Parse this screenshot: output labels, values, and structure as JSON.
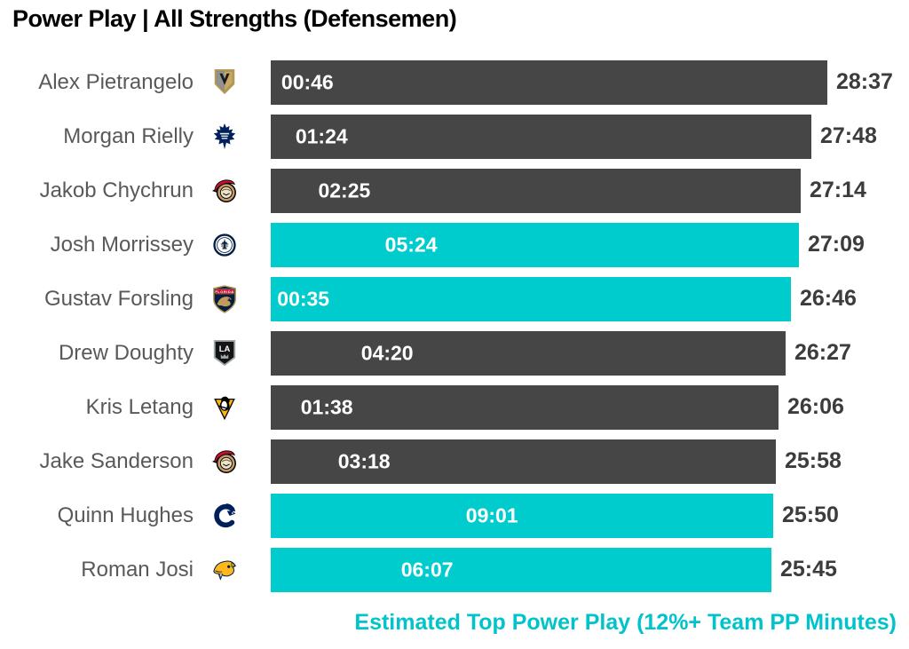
{
  "title": "Power Play | All Strengths (Defensemen)",
  "footnote": "Estimated Top Power Play (12%+ Team PP Minutes)",
  "colors": {
    "title_text": "#000000",
    "bar_default": "#464646",
    "bar_highlight": "#00CCCE",
    "name_text": "#595959",
    "value_text": "#3C3C3C",
    "pp_label_text": "#FFFFFF",
    "footnote_text": "#00C3CB"
  },
  "chart_data": {
    "type": "bar",
    "orientation": "horizontal",
    "title": "Power Play | All Strengths (Defensemen)",
    "footnote": "Estimated Top Power Play (12%+ Team PP Minutes)",
    "bar_length_metric": "Time on ice per game, all strengths (mm:ss)",
    "inner_label_metric": "Power play time per game (mm:ss)",
    "highlight_meaning": "Teal bar = Estimated Top Power Play (12%+ Team PP Minutes)",
    "axis_max": "28:37",
    "value_format": "mm:ss",
    "legend_position": "bottom-right",
    "grid": false,
    "players": [
      {
        "name": "Alex Pietrangelo",
        "team": "Vegas Golden Knights",
        "team_icon": "vegas-golden-knights-logo-icon",
        "logo": "vgk",
        "pp_time": "00:46",
        "toi": "28:37",
        "highlighted": false
      },
      {
        "name": "Morgan Rielly",
        "team": "Toronto Maple Leafs",
        "team_icon": "toronto-maple-leafs-logo-icon",
        "logo": "tor",
        "pp_time": "01:24",
        "toi": "27:48",
        "highlighted": false
      },
      {
        "name": "Jakob Chychrun",
        "team": "Ottawa Senators",
        "team_icon": "ottawa-senators-logo-icon",
        "logo": "ott",
        "pp_time": "02:25",
        "toi": "27:14",
        "highlighted": false
      },
      {
        "name": "Josh Morrissey",
        "team": "Winnipeg Jets",
        "team_icon": "winnipeg-jets-logo-icon",
        "logo": "wpg",
        "pp_time": "05:24",
        "toi": "27:09",
        "highlighted": true
      },
      {
        "name": "Gustav Forsling",
        "team": "Florida Panthers",
        "team_icon": "florida-panthers-logo-icon",
        "logo": "fla",
        "pp_time": "00:35",
        "toi": "26:46",
        "highlighted": true
      },
      {
        "name": "Drew Doughty",
        "team": "Los Angeles Kings",
        "team_icon": "la-kings-logo-icon",
        "logo": "lak",
        "pp_time": "04:20",
        "toi": "26:27",
        "highlighted": false
      },
      {
        "name": "Kris Letang",
        "team": "Pittsburgh Penguins",
        "team_icon": "pittsburgh-penguins-logo-icon",
        "logo": "pit",
        "pp_time": "01:38",
        "toi": "26:06",
        "highlighted": false
      },
      {
        "name": "Jake Sanderson",
        "team": "Ottawa Senators",
        "team_icon": "ottawa-senators-logo-icon",
        "logo": "ott",
        "pp_time": "03:18",
        "toi": "25:58",
        "highlighted": false
      },
      {
        "name": "Quinn Hughes",
        "team": "Vancouver Canucks",
        "team_icon": "vancouver-canucks-logo-icon",
        "logo": "van",
        "pp_time": "09:01",
        "toi": "25:50",
        "highlighted": true
      },
      {
        "name": "Roman Josi",
        "team": "Nashville Predators",
        "team_icon": "nashville-predators-logo-icon",
        "logo": "nsh",
        "pp_time": "06:07",
        "toi": "25:45",
        "highlighted": true
      }
    ]
  }
}
